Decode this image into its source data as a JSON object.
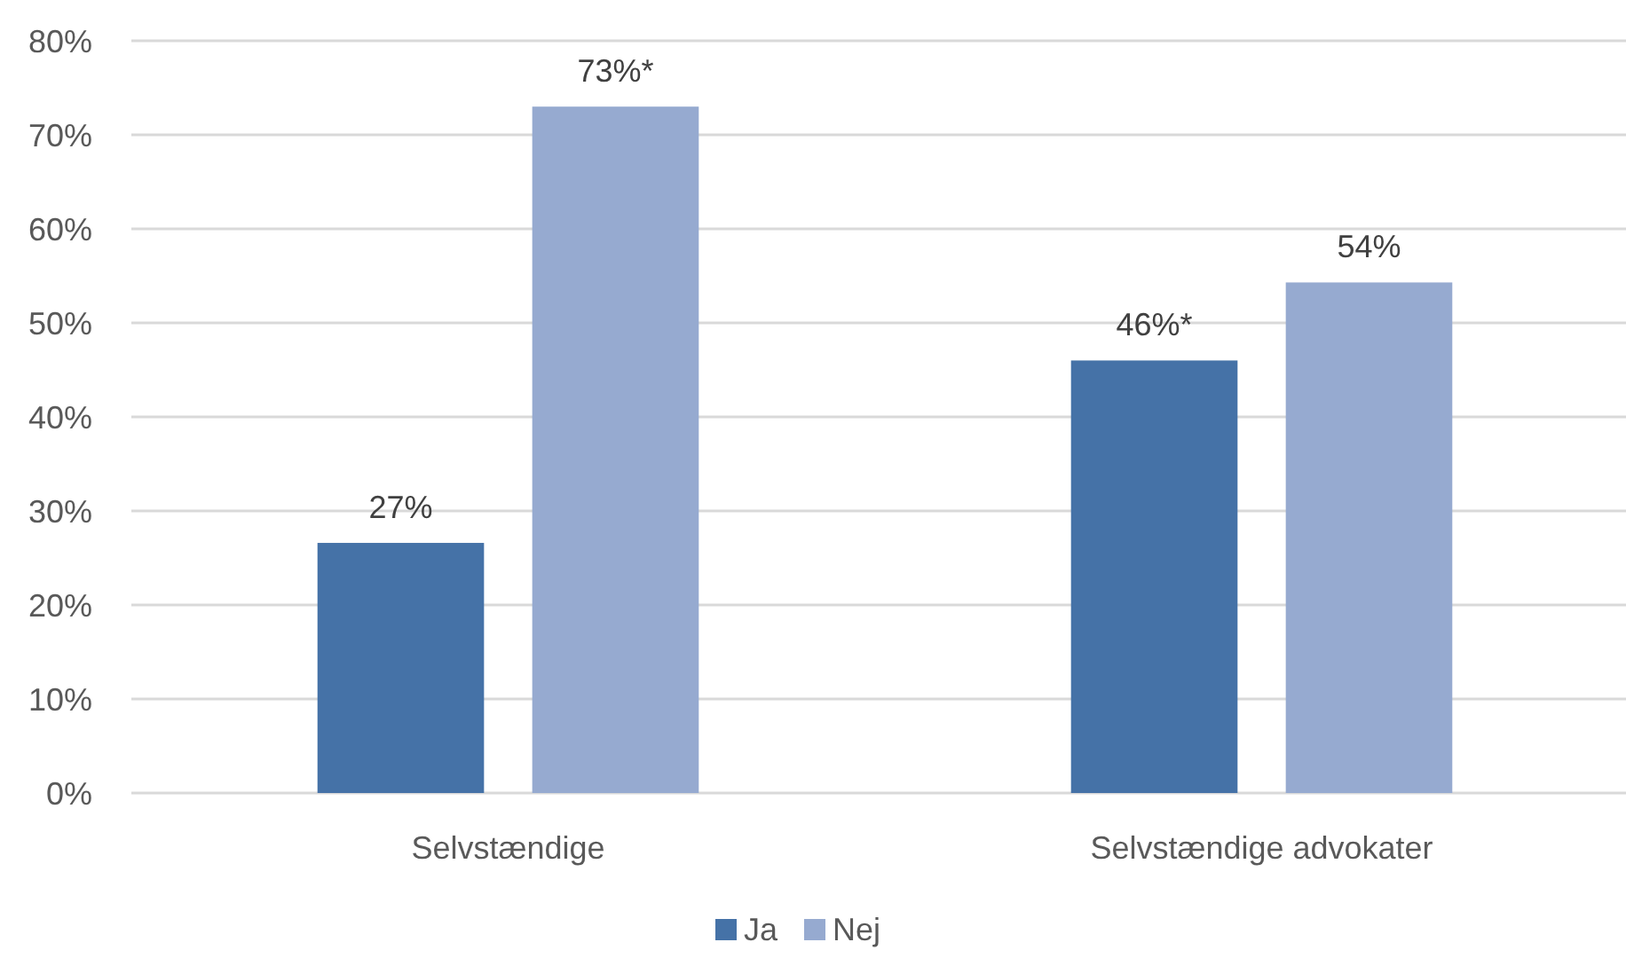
{
  "chart_data": {
    "type": "bar",
    "categories": [
      "Selvstændige",
      "Selvstændige advokater"
    ],
    "series": [
      {
        "name": "Ja",
        "color": "#4572a7",
        "values": [
          26.6,
          46
        ],
        "value_labels": [
          "27%",
          "46%*"
        ]
      },
      {
        "name": "Nej",
        "color": "#96aad0",
        "values": [
          73,
          54.3
        ],
        "value_labels": [
          "73%*",
          "54%"
        ]
      }
    ],
    "ylim": [
      0,
      80
    ],
    "yticks": [
      {
        "value": 0,
        "label": "0%"
      },
      {
        "value": 10,
        "label": "10%"
      },
      {
        "value": 20,
        "label": "20%"
      },
      {
        "value": 30,
        "label": "30%"
      },
      {
        "value": 40,
        "label": "40%"
      },
      {
        "value": 50,
        "label": "50%"
      },
      {
        "value": 60,
        "label": "60%"
      },
      {
        "value": 70,
        "label": "70%"
      },
      {
        "value": 80,
        "label": "80%"
      }
    ],
    "grid": "y",
    "legend": "bottom"
  }
}
